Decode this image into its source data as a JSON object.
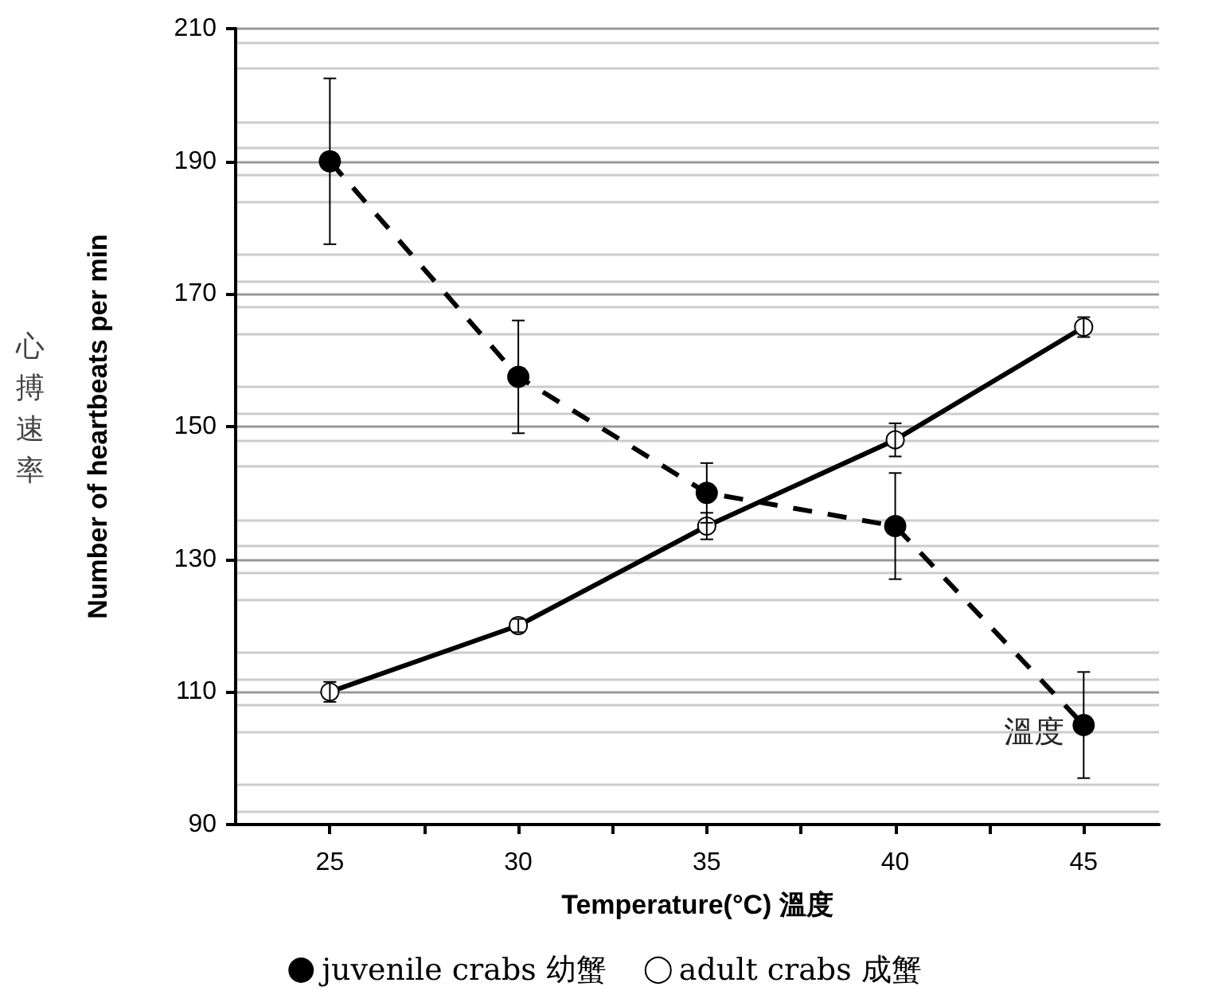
{
  "chart_data": {
    "type": "line",
    "xlabel": "Temperature(°C) 溫度",
    "ylabel": "Number of heartbeats per min",
    "annotations": [
      "心搏速率",
      {
        "text": "溫度",
        "x": 45,
        "y": 105
      }
    ],
    "x": [
      25,
      30,
      35,
      40,
      45
    ],
    "series": [
      {
        "name": "juvenile crabs 幼蟹",
        "color": "#000000",
        "values": [
          190,
          157.5,
          140,
          135,
          105
        ],
        "errors": [
          12.5,
          8.5,
          4.5,
          8,
          8
        ],
        "line_style": "dashed",
        "marker": "circle"
      },
      {
        "name": "adult crabs 成蟹",
        "color": "#000000",
        "values": [
          110,
          120,
          135,
          148,
          165
        ],
        "errors": [
          1.5,
          1,
          2,
          2.5,
          1.5
        ],
        "line_style": "solid",
        "marker": "circle"
      }
    ],
    "xlim": [
      22.5,
      47
    ],
    "xticks": [
      25,
      {
        "value": 27.5,
        "label": null
      },
      30,
      {
        "value": 32.5,
        "label": null
      },
      35,
      {
        "value": 37.5,
        "label": null
      },
      40,
      {
        "value": 42.5,
        "label": null
      },
      45
    ],
    "ylim": [
      90,
      210
    ],
    "yticks": [
      90,
      110,
      130,
      150,
      170,
      190,
      210
    ],
    "grid": "y",
    "legend": "bottom"
  }
}
